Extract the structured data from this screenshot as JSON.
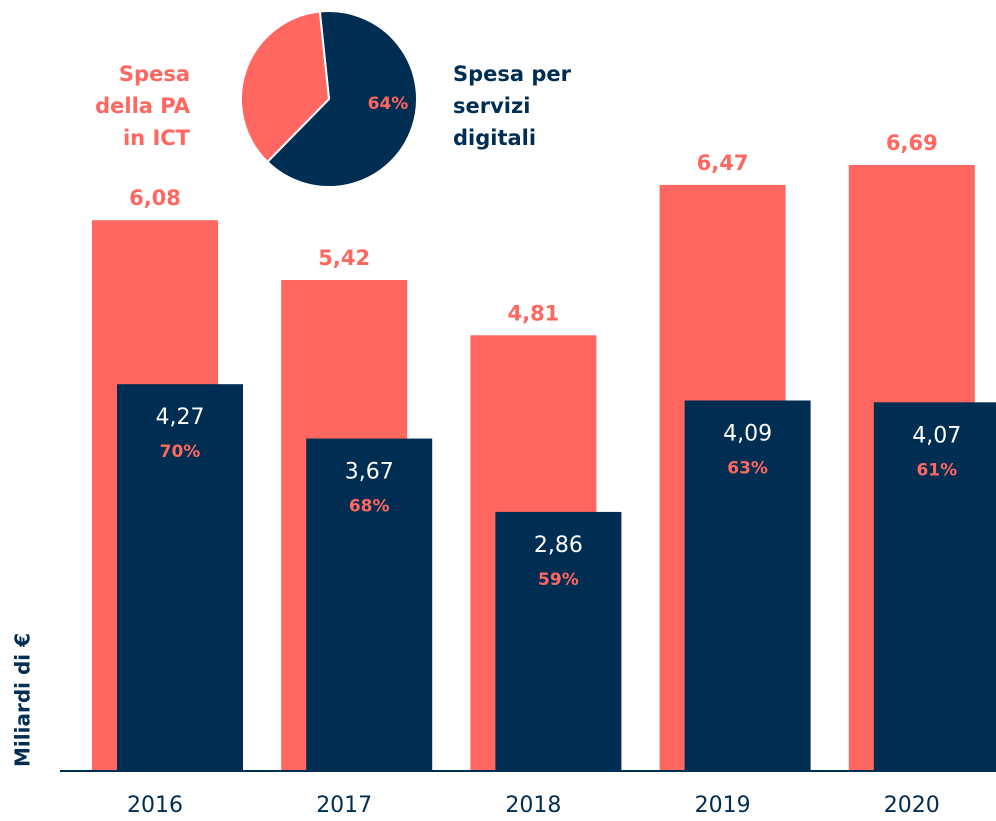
{
  "chart_data": [
    {
      "type": "bar",
      "ylabel": "Miliardi di €",
      "categories": [
        "2016",
        "2017",
        "2018",
        "2019",
        "2020"
      ],
      "ylim": [
        0,
        8.5
      ],
      "series": [
        {
          "color": "#ff6760",
          "values": [
            6.08,
            5.42,
            4.81,
            6.47,
            6.69
          ],
          "value_labels": [
            "6,08",
            "5,42",
            "4,81",
            "6,47",
            "6,69"
          ]
        },
        {
          "color": "#002d52",
          "values": [
            4.27,
            3.67,
            2.86,
            4.09,
            4.07
          ],
          "value_labels": [
            "4,27",
            "3,67",
            "2,86",
            "4,09",
            "4,07"
          ],
          "shares": [
            70,
            68,
            59,
            63,
            61
          ],
          "share_labels": [
            "70%",
            "68%",
            "59%",
            "63%",
            "61%"
          ]
        }
      ]
    },
    {
      "type": "pie",
      "categories": [
        "Spesa per servizi digitali",
        "Spesa della PA in ICT"
      ],
      "values": [
        64,
        36
      ],
      "colors": [
        "#002d52",
        "#ff6760"
      ],
      "value_labels": [
        "64%",
        null
      ]
    }
  ]
}
